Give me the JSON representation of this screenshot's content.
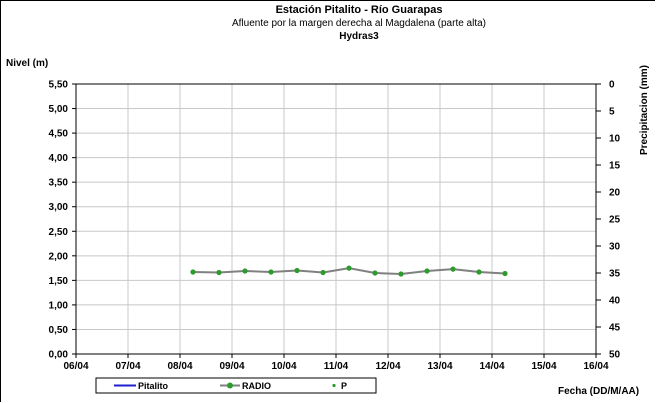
{
  "chart_data": {
    "type": "line",
    "title": "Estación Pitalito  - Río Guarapas",
    "subtitle": "Afluente por la margen derecha al Magdalena (parte alta)",
    "subtitle2": "Hydras3",
    "ylabel": "Nivel (m)",
    "y2label": "Precipitacion (mm)",
    "xlabel": "Fecha (DD/M/AA)",
    "ylim": [
      0,
      5.5
    ],
    "y_ticks": [
      "0,00",
      "0,50",
      "1,00",
      "1,50",
      "2,00",
      "2,50",
      "3,00",
      "3,50",
      "4,00",
      "4,50",
      "5,00",
      "5,50"
    ],
    "y2lim": [
      0,
      50
    ],
    "y2_inverted": true,
    "y2_ticks": [
      "0",
      "5",
      "10",
      "15",
      "20",
      "25",
      "30",
      "35",
      "40",
      "45",
      "50"
    ],
    "x_ticks": [
      "06/04",
      "07/04",
      "08/04",
      "09/04",
      "10/04",
      "11/04",
      "12/04",
      "13/04",
      "14/04",
      "15/04",
      "16/04"
    ],
    "grid": true,
    "legend_position": "bottom",
    "series": [
      {
        "name": "Pitalito",
        "color": "#1f1fd0",
        "style": "line",
        "x": [],
        "y": []
      },
      {
        "name": "RADIO",
        "color": "#808080",
        "marker_color": "#2e9b2e",
        "style": "line-marker",
        "x": [
          2.25,
          2.75,
          3.25,
          3.75,
          4.25,
          4.75,
          5.25,
          5.75,
          6.25,
          6.75,
          7.25,
          7.75,
          8.25
        ],
        "y": [
          1.67,
          1.66,
          1.69,
          1.67,
          1.7,
          1.66,
          1.75,
          1.65,
          1.63,
          1.69,
          1.73,
          1.67,
          1.64
        ]
      },
      {
        "name": "P",
        "color": "#2e9b2e",
        "style": "marker",
        "x": [],
        "y": []
      }
    ]
  }
}
